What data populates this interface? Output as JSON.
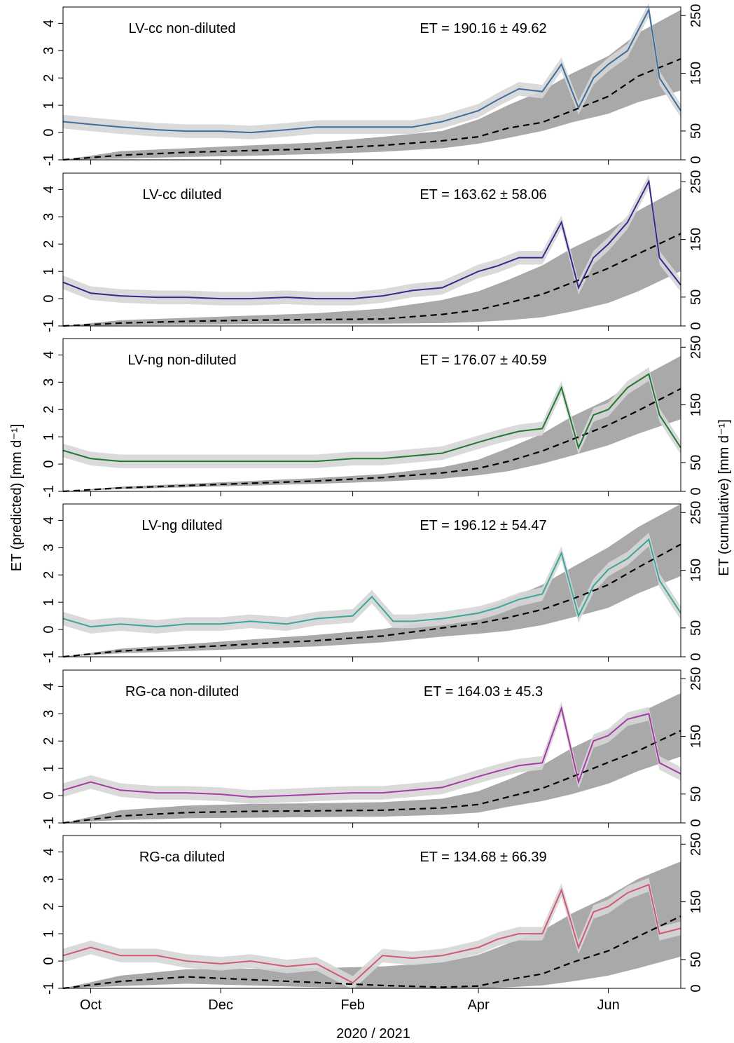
{
  "figure": {
    "y_left_label": "ET (predicted) [mm d⁻¹]",
    "y_right_label": "ET (cumulative) [mm d⁻¹]",
    "x_label": "2020 / 2021",
    "x_ticks": [
      "Oct",
      "Dec",
      "Feb",
      "Apr",
      "Jun"
    ]
  },
  "chart_data": [
    {
      "type": "line",
      "title": "LV-cc non-diluted",
      "annotation": "ET = 190.16 ± 49.62",
      "xlim": [
        "2020-09-18",
        "2021-07-05"
      ],
      "ylim_left": [
        -1,
        4.6
      ],
      "ylim_right": [
        0,
        265
      ],
      "left_ticks": [
        -1,
        0,
        1,
        2,
        3,
        4
      ],
      "right_ticks": [
        0,
        50,
        150,
        250
      ],
      "color": "#3f6d9a",
      "series": [
        {
          "name": "",
          "x": [
            "2020-09-18",
            "2020-10-01",
            "2020-10-15",
            "2020-11-01",
            "2020-11-15",
            "2020-12-01",
            "2020-12-15",
            "2021-01-01",
            "2021-01-15",
            "2021-02-01",
            "2021-02-15",
            "2021-03-01",
            "2021-03-15",
            "2021-04-01",
            "2021-04-10",
            "2021-04-20",
            "2021-05-01",
            "2021-05-10",
            "2021-05-18",
            "2021-05-25",
            "2021-06-01",
            "2021-06-10",
            "2021-06-20",
            "2021-06-25",
            "2021-07-05"
          ],
          "y": [
            0.4,
            0.3,
            0.2,
            0.1,
            0.05,
            0.05,
            0.0,
            0.1,
            0.2,
            0.2,
            0.2,
            0.2,
            0.4,
            0.8,
            1.2,
            1.6,
            1.5,
            2.5,
            0.9,
            2.0,
            2.5,
            3.0,
            4.5,
            2.0,
            0.8
          ]
        },
        {
          "name": "",
          "x": [
            "2020-09-18",
            "2020-10-15",
            "2020-11-15",
            "2020-12-15",
            "2021-01-15",
            "2021-02-15",
            "2021-03-15",
            "2021-04-01",
            "2021-04-15",
            "2021-05-01",
            "2021-05-15",
            "2021-06-01",
            "2021-06-15",
            "2021-07-05"
          ],
          "y": [
            0,
            8,
            13,
            16,
            19,
            25,
            33,
            40,
            55,
            65,
            85,
            110,
            145,
            175
          ]
        }
      ],
      "band_upper": [
        0,
        15,
        20,
        25,
        30,
        40,
        50,
        70,
        95,
        120,
        150,
        180,
        220,
        260
      ],
      "band_lower": [
        0,
        2,
        5,
        7,
        10,
        14,
        20,
        28,
        38,
        50,
        65,
        80,
        100,
        120
      ]
    },
    {
      "type": "line",
      "title": "LV-cc diluted",
      "annotation": "ET = 163.62 ± 58.06",
      "xlim": [
        "2020-09-18",
        "2021-07-05"
      ],
      "ylim_left": [
        -1,
        4.6
      ],
      "ylim_right": [
        0,
        265
      ],
      "left_ticks": [
        -1,
        0,
        1,
        2,
        3,
        4
      ],
      "right_ticks": [
        0,
        50,
        150,
        250
      ],
      "color": "#2f2a8c",
      "series": [
        {
          "name": "",
          "x": [
            "2020-09-18",
            "2020-10-01",
            "2020-10-15",
            "2020-11-01",
            "2020-11-15",
            "2020-12-01",
            "2020-12-15",
            "2021-01-01",
            "2021-01-15",
            "2021-02-01",
            "2021-02-15",
            "2021-03-01",
            "2021-03-15",
            "2021-04-01",
            "2021-04-10",
            "2021-04-20",
            "2021-05-01",
            "2021-05-10",
            "2021-05-18",
            "2021-05-25",
            "2021-06-01",
            "2021-06-10",
            "2021-06-20",
            "2021-06-25",
            "2021-07-05"
          ],
          "y": [
            0.6,
            0.2,
            0.1,
            0.05,
            0.05,
            0.0,
            0.0,
            0.05,
            0.0,
            0.0,
            0.1,
            0.3,
            0.4,
            1.0,
            1.2,
            1.5,
            1.5,
            2.8,
            0.4,
            1.5,
            2.0,
            2.8,
            4.3,
            1.5,
            0.5
          ]
        },
        {
          "name": "",
          "x": [
            "2020-09-18",
            "2020-10-15",
            "2020-11-15",
            "2020-12-15",
            "2021-01-15",
            "2021-02-15",
            "2021-03-15",
            "2021-04-01",
            "2021-04-15",
            "2021-05-01",
            "2021-05-15",
            "2021-06-01",
            "2021-06-15",
            "2021-07-05"
          ],
          "y": [
            0,
            5,
            8,
            10,
            11,
            12,
            20,
            28,
            40,
            55,
            75,
            100,
            125,
            160
          ]
        }
      ],
      "band_upper": [
        0,
        10,
        14,
        18,
        22,
        30,
        45,
        60,
        80,
        105,
        135,
        165,
        200,
        240
      ],
      "band_lower": [
        0,
        1,
        2,
        3,
        4,
        4,
        5,
        7,
        10,
        15,
        25,
        40,
        60,
        95
      ]
    },
    {
      "type": "line",
      "title": "LV-ng non-diluted",
      "annotation": "ET = 176.07 ± 40.59",
      "xlim": [
        "2020-09-18",
        "2021-07-05"
      ],
      "ylim_left": [
        -1,
        4.6
      ],
      "ylim_right": [
        0,
        265
      ],
      "left_ticks": [
        -1,
        0,
        1,
        2,
        3,
        4
      ],
      "right_ticks": [
        0,
        50,
        150,
        250
      ],
      "color": "#1f7a2f",
      "series": [
        {
          "name": "",
          "x": [
            "2020-09-18",
            "2020-10-01",
            "2020-10-15",
            "2020-11-01",
            "2020-11-15",
            "2020-12-01",
            "2020-12-15",
            "2021-01-01",
            "2021-01-15",
            "2021-02-01",
            "2021-02-15",
            "2021-03-01",
            "2021-03-15",
            "2021-04-01",
            "2021-04-10",
            "2021-04-20",
            "2021-05-01",
            "2021-05-10",
            "2021-05-18",
            "2021-05-25",
            "2021-06-01",
            "2021-06-10",
            "2021-06-20",
            "2021-06-25",
            "2021-07-05"
          ],
          "y": [
            0.5,
            0.2,
            0.1,
            0.1,
            0.1,
            0.1,
            0.1,
            0.1,
            0.1,
            0.2,
            0.2,
            0.3,
            0.4,
            0.8,
            1.0,
            1.2,
            1.3,
            2.8,
            0.6,
            1.8,
            2.0,
            2.8,
            3.3,
            1.8,
            0.6
          ]
        },
        {
          "name": "",
          "x": [
            "2020-09-18",
            "2020-10-15",
            "2020-11-15",
            "2020-12-15",
            "2021-01-15",
            "2021-02-15",
            "2021-03-15",
            "2021-04-01",
            "2021-04-15",
            "2021-05-01",
            "2021-05-15",
            "2021-06-01",
            "2021-06-15",
            "2021-07-05"
          ],
          "y": [
            0,
            6,
            10,
            14,
            18,
            24,
            32,
            40,
            52,
            70,
            90,
            115,
            140,
            178
          ]
        }
      ],
      "band_upper": [
        0,
        8,
        13,
        18,
        23,
        30,
        42,
        55,
        75,
        100,
        130,
        160,
        195,
        235
      ],
      "band_lower": [
        0,
        4,
        7,
        10,
        13,
        17,
        22,
        28,
        35,
        48,
        62,
        80,
        100,
        125
      ]
    },
    {
      "type": "line",
      "title": "LV-ng diluted",
      "annotation": "ET = 196.12 ± 54.47",
      "xlim": [
        "2020-09-18",
        "2021-07-05"
      ],
      "ylim_left": [
        -1,
        4.6
      ],
      "ylim_right": [
        0,
        265
      ],
      "left_ticks": [
        -1,
        0,
        1,
        2,
        3,
        4
      ],
      "right_ticks": [
        0,
        50,
        150,
        250
      ],
      "color": "#3aa798",
      "series": [
        {
          "name": "",
          "x": [
            "2020-09-18",
            "2020-10-01",
            "2020-10-15",
            "2020-11-01",
            "2020-11-15",
            "2020-12-01",
            "2020-12-15",
            "2021-01-01",
            "2021-01-15",
            "2021-02-01",
            "2021-02-10",
            "2021-02-20",
            "2021-03-01",
            "2021-03-15",
            "2021-04-01",
            "2021-04-10",
            "2021-04-20",
            "2021-05-01",
            "2021-05-10",
            "2021-05-18",
            "2021-05-25",
            "2021-06-01",
            "2021-06-10",
            "2021-06-20",
            "2021-06-25",
            "2021-07-05"
          ],
          "y": [
            0.4,
            0.1,
            0.2,
            0.1,
            0.2,
            0.2,
            0.3,
            0.2,
            0.4,
            0.5,
            1.2,
            0.3,
            0.3,
            0.4,
            0.6,
            0.8,
            1.1,
            1.3,
            2.8,
            0.5,
            1.6,
            2.2,
            2.6,
            3.3,
            1.8,
            0.6
          ]
        },
        {
          "name": "",
          "x": [
            "2020-09-18",
            "2020-10-15",
            "2020-11-15",
            "2020-12-15",
            "2021-01-15",
            "2021-02-15",
            "2021-03-15",
            "2021-04-01",
            "2021-04-15",
            "2021-05-01",
            "2021-05-15",
            "2021-06-01",
            "2021-06-15",
            "2021-07-05"
          ],
          "y": [
            0,
            10,
            16,
            22,
            28,
            36,
            50,
            58,
            68,
            82,
            100,
            125,
            155,
            195
          ]
        }
      ],
      "band_upper": [
        0,
        14,
        22,
        30,
        38,
        48,
        65,
        80,
        100,
        125,
        155,
        190,
        225,
        265
      ],
      "band_lower": [
        0,
        6,
        10,
        14,
        18,
        25,
        35,
        40,
        45,
        55,
        68,
        85,
        110,
        140
      ]
    },
    {
      "type": "line",
      "title": "RG-ca non-diluted",
      "annotation": "ET = 164.03 ± 45.3",
      "xlim": [
        "2020-09-18",
        "2021-07-05"
      ],
      "ylim_left": [
        -1,
        4.6
      ],
      "ylim_right": [
        0,
        265
      ],
      "left_ticks": [
        -1,
        0,
        1,
        2,
        3,
        4
      ],
      "right_ticks": [
        0,
        50,
        150,
        250
      ],
      "color": "#a63aa6",
      "series": [
        {
          "name": "",
          "x": [
            "2020-09-18",
            "2020-10-01",
            "2020-10-15",
            "2020-11-01",
            "2020-11-15",
            "2020-12-01",
            "2020-12-15",
            "2021-01-01",
            "2021-01-15",
            "2021-02-01",
            "2021-02-15",
            "2021-03-01",
            "2021-03-15",
            "2021-04-01",
            "2021-04-10",
            "2021-04-20",
            "2021-05-01",
            "2021-05-10",
            "2021-05-18",
            "2021-05-25",
            "2021-06-01",
            "2021-06-10",
            "2021-06-20",
            "2021-06-25",
            "2021-07-05"
          ],
          "y": [
            0.2,
            0.5,
            0.2,
            0.1,
            0.1,
            0.05,
            -0.05,
            0.0,
            0.05,
            0.1,
            0.1,
            0.2,
            0.3,
            0.7,
            0.9,
            1.1,
            1.2,
            3.2,
            0.5,
            2.0,
            2.2,
            2.8,
            3.0,
            1.2,
            0.8
          ]
        },
        {
          "name": "",
          "x": [
            "2020-09-18",
            "2020-10-15",
            "2020-11-15",
            "2020-12-15",
            "2021-01-15",
            "2021-02-15",
            "2021-03-15",
            "2021-04-01",
            "2021-04-15",
            "2021-05-01",
            "2021-05-15",
            "2021-06-01",
            "2021-06-15",
            "2021-07-05"
          ],
          "y": [
            0,
            12,
            18,
            20,
            21,
            22,
            26,
            32,
            45,
            60,
            80,
            105,
            125,
            160
          ]
        }
      ],
      "band_upper": [
        0,
        22,
        30,
        33,
        34,
        36,
        42,
        55,
        75,
        100,
        130,
        160,
        190,
        225
      ],
      "band_lower": [
        0,
        5,
        8,
        9,
        10,
        11,
        14,
        18,
        28,
        38,
        50,
        68,
        90,
        115
      ]
    },
    {
      "type": "line",
      "title": "RG-ca diluted",
      "annotation": "ET = 134.68 ± 66.39",
      "xlim": [
        "2020-09-18",
        "2021-07-05"
      ],
      "ylim_left": [
        -1,
        4.6
      ],
      "ylim_right": [
        0,
        265
      ],
      "left_ticks": [
        -1,
        0,
        1,
        2,
        3,
        4
      ],
      "right_ticks": [
        0,
        50,
        150,
        250
      ],
      "color": "#d05a72",
      "series": [
        {
          "name": "",
          "x": [
            "2020-09-18",
            "2020-10-01",
            "2020-10-15",
            "2020-11-01",
            "2020-11-15",
            "2020-12-01",
            "2020-12-15",
            "2021-01-01",
            "2021-01-15",
            "2021-02-01",
            "2021-02-15",
            "2021-03-01",
            "2021-03-15",
            "2021-04-01",
            "2021-04-10",
            "2021-04-20",
            "2021-05-01",
            "2021-05-10",
            "2021-05-18",
            "2021-05-25",
            "2021-06-01",
            "2021-06-10",
            "2021-06-20",
            "2021-06-25",
            "2021-07-05"
          ],
          "y": [
            0.2,
            0.5,
            0.2,
            0.2,
            0.0,
            -0.1,
            0.0,
            -0.2,
            -0.1,
            -0.8,
            0.2,
            0.1,
            0.2,
            0.5,
            0.8,
            1.0,
            1.0,
            2.6,
            0.5,
            1.8,
            2.0,
            2.5,
            2.8,
            1.0,
            1.2
          ]
        },
        {
          "name": "",
          "x": [
            "2020-09-18",
            "2020-10-15",
            "2020-11-15",
            "2020-12-15",
            "2021-01-15",
            "2021-02-15",
            "2021-03-15",
            "2021-04-01",
            "2021-04-15",
            "2021-05-01",
            "2021-05-15",
            "2021-06-01",
            "2021-06-15",
            "2021-07-05"
          ],
          "y": [
            0,
            12,
            20,
            15,
            10,
            5,
            2,
            4,
            15,
            25,
            45,
            65,
            90,
            125
          ]
        }
      ],
      "band_upper": [
        0,
        22,
        33,
        34,
        35,
        38,
        45,
        58,
        78,
        100,
        130,
        160,
        190,
        220
      ],
      "band_lower": [
        0,
        4,
        8,
        5,
        2,
        0,
        0,
        0,
        2,
        5,
        12,
        22,
        35,
        55
      ]
    }
  ]
}
